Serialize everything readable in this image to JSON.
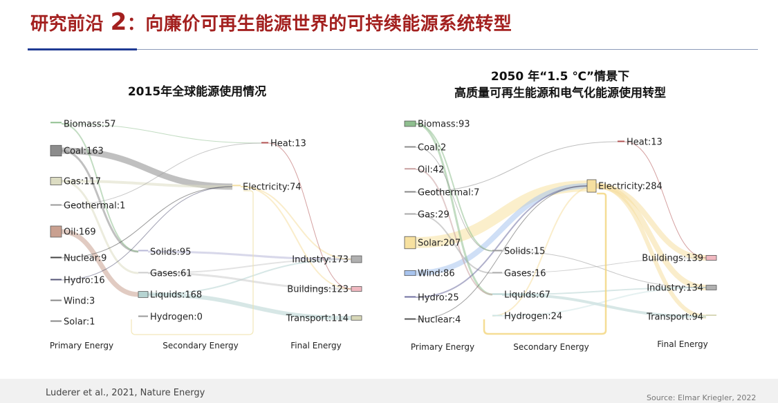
{
  "slide": {
    "title_prefix": "研究前沿",
    "title_number": "2",
    "title_rest": "：向廉价可再生能源世界的可持续能源系统转型",
    "citation": "Luderer et al., 2021, Nature Energy",
    "source": "Source: Elmar Kriegler, 2022"
  },
  "left": {
    "title": "2015年全球能源使用情况",
    "stages": [
      "Primary Energy",
      "Secondary Energy",
      "Final Energy"
    ],
    "primary": [
      {
        "label": "Biomass:57",
        "color": "#8fbf8f"
      },
      {
        "label": "Coal:163",
        "color": "#8c8c8c"
      },
      {
        "label": "Gas:117",
        "color": "#dcdcc2"
      },
      {
        "label": "Geothermal:1",
        "color": "#999999"
      },
      {
        "label": "Oil:169",
        "color": "#c9a090"
      },
      {
        "label": "Nuclear:9",
        "color": "#444444"
      },
      {
        "label": "Hydro:16",
        "color": "#555577"
      },
      {
        "label": "Wind:3",
        "color": "#888888"
      },
      {
        "label": "Solar:1",
        "color": "#888888"
      }
    ],
    "secondary": [
      {
        "label": "Electricity:74",
        "color": "#f5dfa0"
      },
      {
        "label": "Heat:13",
        "color": "#b05050"
      },
      {
        "label": "Solids:95",
        "color": "#b8b8d8"
      },
      {
        "label": "Gases:61",
        "color": "#cccccc"
      },
      {
        "label": "Liquids:168",
        "color": "#b6d4d2"
      },
      {
        "label": "Hydrogen:0",
        "color": "#999999"
      }
    ],
    "final": [
      {
        "label": "Industry:173",
        "color": "#b0b0b0"
      },
      {
        "label": "Buildings:123",
        "color": "#f0b8c0"
      },
      {
        "label": "Transport:114",
        "color": "#d8d8b8"
      }
    ]
  },
  "right": {
    "title_line1": "2050 年“1.5 ℃”情景下",
    "title_line2": "高质量可再生能源和电气化能源使用转型",
    "stages": [
      "Primary Energy",
      "Secondary Energy",
      "Final Energy"
    ],
    "primary": [
      {
        "label": "Biomass:93",
        "color": "#8fbf8f"
      },
      {
        "label": "Coal:2",
        "color": "#8c8c8c"
      },
      {
        "label": "Oil:42",
        "color": "#c9a0a0"
      },
      {
        "label": "Geothermal:7",
        "color": "#888888"
      },
      {
        "label": "Gas:29",
        "color": "#aaaaaa"
      },
      {
        "label": "Solar:207",
        "color": "#f7e1a0"
      },
      {
        "label": "Wind:86",
        "color": "#a8c4ee"
      },
      {
        "label": "Hydro:25",
        "color": "#7070a0"
      },
      {
        "label": "Nuclear:4",
        "color": "#555555"
      }
    ],
    "secondary": [
      {
        "label": "Electricity:284",
        "color": "#f5dfa0"
      },
      {
        "label": "Heat:13",
        "color": "#b05050"
      },
      {
        "label": "Solids:15",
        "color": "#999999"
      },
      {
        "label": "Gases:16",
        "color": "#aaaaaa"
      },
      {
        "label": "Liquids:67",
        "color": "#b6d4d2"
      },
      {
        "label": "Hydrogen:24",
        "color": "#cfe6e6"
      }
    ],
    "final": [
      {
        "label": "Buildings:139",
        "color": "#f0b8c0"
      },
      {
        "label": "Industry:134",
        "color": "#b0b0b0"
      },
      {
        "label": "Transport:94",
        "color": "#d8d8b8"
      }
    ]
  }
}
